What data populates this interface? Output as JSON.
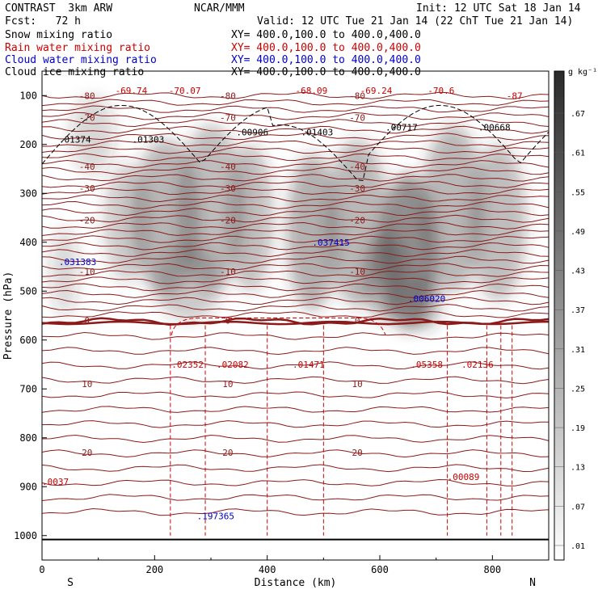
{
  "header": {
    "model": "CONTRAST  3km ARW",
    "center": "NCAR/MMM",
    "init": "Init: 12 UTC Sat 18 Jan 14",
    "fcst": "Fcst:   72 h",
    "valid": "Valid: 12 UTC Tue 21 Jan 14 (22 ChT Tue 21 Jan 14)"
  },
  "legend": [
    {
      "field": "Snow mixing ratio",
      "xy": "XY= 400.0,100.0 to 400.0,400.0",
      "color": "#000000"
    },
    {
      "field": "Rain water mixing ratio",
      "xy": "XY= 400.0,100.0 to 400.0,400.0",
      "color": "#cc0000"
    },
    {
      "field": "Cloud water mixing ratio",
      "xy": "XY= 400.0,100.0 to 400.0,400.0",
      "color": "#0000cc"
    },
    {
      "field": "Cloud ice mixing ratio",
      "xy": "XY= 400.0,100.0 to 400.0,400.0",
      "color": "#000000"
    }
  ],
  "chart_data": {
    "type": "heatmap",
    "xlabel": "Distance (km)",
    "ylabel": "Pressure (hPa)",
    "xlim": [
      0,
      900
    ],
    "ylim": [
      1050,
      50
    ],
    "x_ticks": [
      0,
      200,
      400,
      600,
      800
    ],
    "y_ticks": [
      100,
      200,
      300,
      400,
      500,
      600,
      700,
      800,
      900,
      1000
    ],
    "endpoints": {
      "left": "S",
      "right": "N"
    },
    "colorbar": {
      "unit": "g kg⁻¹",
      "levels": [
        ".67",
        ".61",
        ".55",
        ".49",
        ".43",
        ".37",
        ".31",
        ".25",
        ".19",
        ".13",
        ".07",
        ".01"
      ]
    },
    "temperature_contours": [
      {
        "label": "-80",
        "p": 100
      },
      {
        "label": "-70",
        "p": 145
      },
      {
        "label": "-40",
        "p": 245
      },
      {
        "label": "-30",
        "p": 290
      },
      {
        "label": "-20",
        "p": 355
      },
      {
        "label": "-10",
        "p": 460
      },
      {
        "label": "0",
        "p": 560
      },
      {
        "label": "10",
        "p": 690
      },
      {
        "label": "20",
        "p": 830
      }
    ],
    "max_labels": [
      {
        "text": "-69.74",
        "x": 130,
        "p": 90,
        "color": "#cc0000"
      },
      {
        "text": "-70.07",
        "x": 225,
        "p": 90,
        "color": "#cc0000"
      },
      {
        "text": "-68.09",
        "x": 450,
        "p": 90,
        "color": "#cc0000"
      },
      {
        "text": "-69.24",
        "x": 565,
        "p": 90,
        "color": "#cc0000"
      },
      {
        "text": "-70.6",
        "x": 685,
        "p": 90,
        "color": "#cc0000"
      },
      {
        "text": "-87",
        "x": 825,
        "p": 100,
        "color": "#cc0000"
      },
      {
        "text": ".01374",
        "x": 30,
        "p": 190,
        "color": "#000000"
      },
      {
        "text": ".01303",
        "x": 160,
        "p": 190,
        "color": "#000000"
      },
      {
        "text": ".00906",
        "x": 345,
        "p": 175,
        "color": "#000000"
      },
      {
        "text": ".01403",
        "x": 460,
        "p": 175,
        "color": "#000000"
      },
      {
        "text": ".00717",
        "x": 610,
        "p": 165,
        "color": "#000000"
      },
      {
        "text": ".00668",
        "x": 775,
        "p": 165,
        "color": "#000000"
      },
      {
        "text": ".031383",
        "x": 30,
        "p": 440,
        "color": "#0000cc"
      },
      {
        "text": ".037415",
        "x": 480,
        "p": 400,
        "color": "#0000cc"
      },
      {
        "text": ".006020",
        "x": 650,
        "p": 515,
        "color": "#0000cc"
      },
      {
        "text": ".197365",
        "x": 275,
        "p": 960,
        "color": "#0000cc"
      },
      {
        "text": ".02352",
        "x": 230,
        "p": 650,
        "color": "#cc0000"
      },
      {
        "text": ".02082",
        "x": 310,
        "p": 650,
        "color": "#cc0000"
      },
      {
        "text": ".01471",
        "x": 445,
        "p": 650,
        "color": "#cc0000"
      },
      {
        "text": ".05358",
        "x": 655,
        "p": 650,
        "color": "#cc0000"
      },
      {
        "text": ".02136",
        "x": 745,
        "p": 650,
        "color": "#cc0000"
      },
      {
        "text": ".00089",
        "x": 720,
        "p": 880,
        "color": "#cc0000"
      },
      {
        "text": ".0037",
        "x": 0,
        "p": 890,
        "color": "#cc0000"
      }
    ]
  }
}
